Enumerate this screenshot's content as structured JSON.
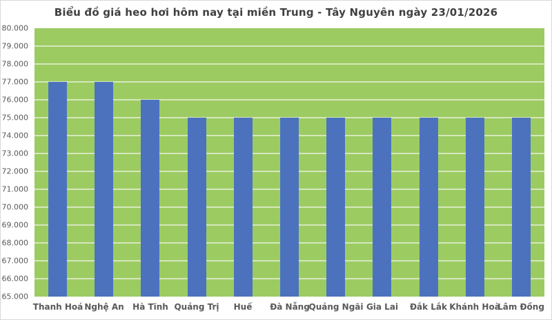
{
  "title": "Biểu đồ giá heo hơi hôm nay tại miền Trung - Tây Nguyên ngày 23/01/2026",
  "colors": {
    "plot_background": "#9CCB62",
    "bar": "#4C72BE",
    "gridline": "#D5E7BC",
    "title_text": "#404040",
    "axis_text": "#595959",
    "frame_border": "#D9D9D9"
  },
  "chart_data": {
    "type": "bar",
    "title": "Biểu đồ giá heo hơi hôm nay tại miền Trung - Tây Nguyên ngày 23/01/2026",
    "categories": [
      "Thanh Hoá",
      "Nghệ An",
      "Hà Tĩnh",
      "Quảng Trị",
      "Huế",
      "Đà Nẵng",
      "Quảng Ngãi",
      "Gia Lai",
      "Đắk Lắk",
      "Khánh Hoà",
      "Lâm Đồng"
    ],
    "values": [
      77000,
      77000,
      76000,
      75000,
      75000,
      75000,
      75000,
      75000,
      75000,
      75000,
      75000
    ],
    "xlabel": "",
    "ylabel": "",
    "ylim": [
      65000,
      80000
    ],
    "y_tick_step": 1000,
    "y_ticks": [
      {
        "value": 65000,
        "label": "65.000"
      },
      {
        "value": 66000,
        "label": "66.000"
      },
      {
        "value": 67000,
        "label": "67.000"
      },
      {
        "value": 68000,
        "label": "68.000"
      },
      {
        "value": 69000,
        "label": "69.000"
      },
      {
        "value": 70000,
        "label": "70.000"
      },
      {
        "value": 71000,
        "label": "71.000"
      },
      {
        "value": 72000,
        "label": "72.000"
      },
      {
        "value": 73000,
        "label": "73.000"
      },
      {
        "value": 74000,
        "label": "74.000"
      },
      {
        "value": 75000,
        "label": "75.000"
      },
      {
        "value": 76000,
        "label": "76.000"
      },
      {
        "value": 77000,
        "label": "77.000"
      },
      {
        "value": 78000,
        "label": "78.000"
      },
      {
        "value": 79000,
        "label": "79.000"
      },
      {
        "value": 80000,
        "label": "80.000"
      }
    ],
    "grid": true,
    "legend": false
  }
}
